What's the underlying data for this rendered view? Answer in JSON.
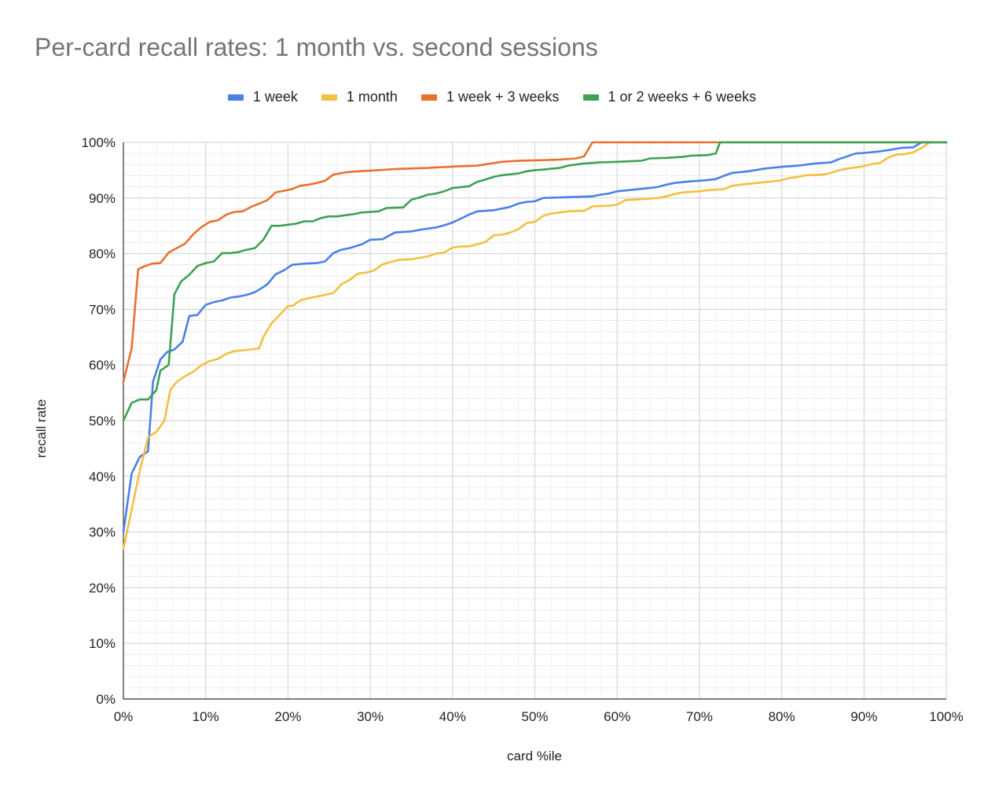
{
  "chart_data": {
    "type": "line",
    "title": "Per-card recall rates: 1 month vs. second sessions",
    "xlabel": "card %ile",
    "ylabel": "recall rate",
    "xlim": [
      0,
      100
    ],
    "ylim": [
      0,
      100
    ],
    "xticks": [
      "0%",
      "10%",
      "20%",
      "30%",
      "40%",
      "50%",
      "60%",
      "70%",
      "80%",
      "90%",
      "100%"
    ],
    "yticks": [
      "0%",
      "10%",
      "20%",
      "30%",
      "40%",
      "50%",
      "60%",
      "70%",
      "80%",
      "90%",
      "100%"
    ],
    "grid": true,
    "legend_position": "top",
    "series": [
      {
        "name": "1 week",
        "color": "#4a80e8",
        "points": [
          [
            0,
            30
          ],
          [
            1,
            40.5
          ],
          [
            2,
            43.5
          ],
          [
            3,
            44.5
          ],
          [
            3.6,
            57
          ],
          [
            4.5,
            61
          ],
          [
            5.3,
            62.3
          ],
          [
            6.2,
            62.8
          ],
          [
            7.2,
            64.2
          ],
          [
            8,
            68.8
          ],
          [
            9,
            69
          ],
          [
            10,
            70.8
          ],
          [
            11,
            71.3
          ],
          [
            12,
            71.6
          ],
          [
            13,
            72.1
          ],
          [
            14,
            72.3
          ],
          [
            15,
            72.6
          ],
          [
            16,
            73.1
          ],
          [
            17,
            74
          ],
          [
            17.5,
            74.5
          ],
          [
            18.5,
            76.3
          ],
          [
            19.5,
            77
          ],
          [
            20.5,
            78
          ],
          [
            22,
            78.2
          ],
          [
            23.5,
            78.3
          ],
          [
            24.5,
            78.6
          ],
          [
            25.5,
            80.1
          ],
          [
            26.5,
            80.7
          ],
          [
            27.5,
            81
          ],
          [
            29,
            81.7
          ],
          [
            30,
            82.5
          ],
          [
            31.5,
            82.6
          ],
          [
            33,
            83.8
          ],
          [
            35,
            84
          ],
          [
            36.5,
            84.4
          ],
          [
            38,
            84.7
          ],
          [
            39,
            85.1
          ],
          [
            40,
            85.6
          ],
          [
            41,
            86.3
          ],
          [
            42,
            87
          ],
          [
            43,
            87.6
          ],
          [
            45,
            87.8
          ],
          [
            47,
            88.4
          ],
          [
            48,
            89
          ],
          [
            49,
            89.3
          ],
          [
            50,
            89.4
          ],
          [
            51,
            90
          ],
          [
            55,
            90.2
          ],
          [
            57,
            90.3
          ],
          [
            58,
            90.6
          ],
          [
            59,
            90.8
          ],
          [
            60,
            91.2
          ],
          [
            62,
            91.5
          ],
          [
            64,
            91.8
          ],
          [
            65,
            92
          ],
          [
            66,
            92.4
          ],
          [
            67,
            92.7
          ],
          [
            69,
            93
          ],
          [
            71,
            93.2
          ],
          [
            72,
            93.4
          ],
          [
            73,
            94
          ],
          [
            74,
            94.5
          ],
          [
            76,
            94.8
          ],
          [
            78,
            95.3
          ],
          [
            80,
            95.6
          ],
          [
            82,
            95.8
          ],
          [
            84,
            96.2
          ],
          [
            86,
            96.4
          ],
          [
            87,
            97
          ],
          [
            88,
            97.5
          ],
          [
            89,
            98
          ],
          [
            90,
            98.1
          ],
          [
            91.5,
            98.3
          ],
          [
            93,
            98.6
          ],
          [
            94.5,
            99
          ],
          [
            96,
            99.1
          ],
          [
            97,
            100
          ],
          [
            100,
            100
          ]
        ]
      },
      {
        "name": "1 month",
        "color": "#f4bf42",
        "points": [
          [
            0,
            27
          ],
          [
            1,
            34
          ],
          [
            2,
            41
          ],
          [
            3,
            47
          ],
          [
            4,
            48
          ],
          [
            5,
            50
          ],
          [
            5.7,
            55.5
          ],
          [
            6.5,
            57
          ],
          [
            7.5,
            58
          ],
          [
            8.5,
            58.8
          ],
          [
            9.5,
            60
          ],
          [
            10.5,
            60.7
          ],
          [
            11.5,
            61.1
          ],
          [
            12.5,
            62
          ],
          [
            13.5,
            62.5
          ],
          [
            15,
            62.7
          ],
          [
            16.5,
            63
          ],
          [
            17,
            65
          ],
          [
            18,
            67.5
          ],
          [
            19,
            69
          ],
          [
            20,
            70.6
          ],
          [
            20.5,
            70.6
          ],
          [
            21.5,
            71.6
          ],
          [
            22.5,
            72
          ],
          [
            23.5,
            72.3
          ],
          [
            24.5,
            72.6
          ],
          [
            25.5,
            72.9
          ],
          [
            26.5,
            74.5
          ],
          [
            27.5,
            75.3
          ],
          [
            28.5,
            76.4
          ],
          [
            29.5,
            76.6
          ],
          [
            30.5,
            77
          ],
          [
            31.5,
            78.1
          ],
          [
            32.5,
            78.5
          ],
          [
            33.5,
            78.9
          ],
          [
            35,
            79
          ],
          [
            37,
            79.5
          ],
          [
            38,
            80
          ],
          [
            39,
            80.2
          ],
          [
            40,
            81.1
          ],
          [
            41,
            81.3
          ],
          [
            42,
            81.3
          ],
          [
            43,
            81.7
          ],
          [
            44,
            82.1
          ],
          [
            45,
            83.3
          ],
          [
            46,
            83.4
          ],
          [
            47,
            83.8
          ],
          [
            48,
            84.4
          ],
          [
            49,
            85.5
          ],
          [
            50,
            85.7
          ],
          [
            51,
            86.8
          ],
          [
            52,
            87.2
          ],
          [
            53,
            87.4
          ],
          [
            54,
            87.6
          ],
          [
            56,
            87.7
          ],
          [
            57,
            88.5
          ],
          [
            59,
            88.6
          ],
          [
            60,
            88.8
          ],
          [
            61,
            89.6
          ],
          [
            63,
            89.8
          ],
          [
            65,
            90
          ],
          [
            66,
            90.3
          ],
          [
            67,
            90.7
          ],
          [
            68,
            91
          ],
          [
            70,
            91.2
          ],
          [
            71,
            91.4
          ],
          [
            73,
            91.6
          ],
          [
            74,
            92.2
          ],
          [
            75,
            92.4
          ],
          [
            77,
            92.7
          ],
          [
            79,
            93
          ],
          [
            80,
            93.2
          ],
          [
            81,
            93.6
          ],
          [
            82,
            93.8
          ],
          [
            83,
            94.1
          ],
          [
            85,
            94.2
          ],
          [
            86,
            94.5
          ],
          [
            87,
            95
          ],
          [
            88,
            95.3
          ],
          [
            89,
            95.5
          ],
          [
            90,
            95.7
          ],
          [
            91,
            96.1
          ],
          [
            92,
            96.3
          ],
          [
            93,
            97.3
          ],
          [
            94,
            97.8
          ],
          [
            95,
            97.9
          ],
          [
            96,
            98.2
          ],
          [
            97,
            99
          ],
          [
            98,
            100
          ],
          [
            100,
            100
          ]
        ]
      },
      {
        "name": "1 week + 3 weeks",
        "color": "#e8712f",
        "points": [
          [
            0,
            57
          ],
          [
            1,
            63
          ],
          [
            1.8,
            77.2
          ],
          [
            2.5,
            77.7
          ],
          [
            3.5,
            78.2
          ],
          [
            4.5,
            78.3
          ],
          [
            5.5,
            80.2
          ],
          [
            6.5,
            81
          ],
          [
            7.5,
            81.8
          ],
          [
            8.5,
            83.5
          ],
          [
            9.5,
            84.8
          ],
          [
            10.5,
            85.7
          ],
          [
            11.5,
            86
          ],
          [
            12.5,
            87
          ],
          [
            13.5,
            87.5
          ],
          [
            14.5,
            87.6
          ],
          [
            15.5,
            88.4
          ],
          [
            16.5,
            89
          ],
          [
            17.5,
            89.6
          ],
          [
            18.5,
            91
          ],
          [
            19.5,
            91.3
          ],
          [
            20.5,
            91.6
          ],
          [
            21.5,
            92.2
          ],
          [
            22.5,
            92.4
          ],
          [
            23.5,
            92.7
          ],
          [
            24.5,
            93.1
          ],
          [
            25.5,
            94.2
          ],
          [
            27,
            94.6
          ],
          [
            28.5,
            94.8
          ],
          [
            31,
            95
          ],
          [
            33,
            95.2
          ],
          [
            37,
            95.4
          ],
          [
            38,
            95.5
          ],
          [
            41,
            95.7
          ],
          [
            43,
            95.8
          ],
          [
            46,
            96.5
          ],
          [
            48,
            96.7
          ],
          [
            51,
            96.8
          ],
          [
            53,
            96.9
          ],
          [
            55,
            97.1
          ],
          [
            56,
            97.5
          ],
          [
            57,
            100
          ],
          [
            100,
            100
          ]
        ]
      },
      {
        "name": "1 or 2 weeks + 6 weeks",
        "color": "#3ea153",
        "points": [
          [
            0,
            50
          ],
          [
            1,
            53.2
          ],
          [
            2,
            53.8
          ],
          [
            3,
            53.8
          ],
          [
            4,
            55.5
          ],
          [
            4.5,
            59
          ],
          [
            5.5,
            60
          ],
          [
            6.2,
            72.7
          ],
          [
            7,
            75
          ],
          [
            8,
            76.2
          ],
          [
            9,
            77.8
          ],
          [
            10,
            78.3
          ],
          [
            11,
            78.6
          ],
          [
            12,
            80.1
          ],
          [
            13,
            80.1
          ],
          [
            14,
            80.3
          ],
          [
            15,
            80.7
          ],
          [
            16,
            81
          ],
          [
            17,
            82.5
          ],
          [
            18,
            85
          ],
          [
            19,
            85
          ],
          [
            20,
            85.2
          ],
          [
            21,
            85.4
          ],
          [
            22,
            85.8
          ],
          [
            23,
            85.8
          ],
          [
            24,
            86.4
          ],
          [
            25,
            86.7
          ],
          [
            26,
            86.7
          ],
          [
            27,
            86.9
          ],
          [
            28,
            87.1
          ],
          [
            29,
            87.4
          ],
          [
            30,
            87.5
          ],
          [
            31,
            87.6
          ],
          [
            32,
            88.2
          ],
          [
            34,
            88.3
          ],
          [
            35,
            89.7
          ],
          [
            36,
            90.1
          ],
          [
            37,
            90.6
          ],
          [
            38,
            90.8
          ],
          [
            39,
            91.2
          ],
          [
            40,
            91.8
          ],
          [
            42,
            92.1
          ],
          [
            43,
            92.9
          ],
          [
            44,
            93.3
          ],
          [
            45,
            93.8
          ],
          [
            46,
            94.1
          ],
          [
            48,
            94.4
          ],
          [
            49,
            94.8
          ],
          [
            50,
            95
          ],
          [
            51,
            95.1
          ],
          [
            53,
            95.4
          ],
          [
            54,
            95.8
          ],
          [
            55,
            96
          ],
          [
            56,
            96.2
          ],
          [
            58,
            96.4
          ],
          [
            60,
            96.5
          ],
          [
            63,
            96.7
          ],
          [
            64,
            97.1
          ],
          [
            66,
            97.2
          ],
          [
            68,
            97.4
          ],
          [
            69,
            97.6
          ],
          [
            71,
            97.7
          ],
          [
            72,
            98
          ],
          [
            72.5,
            100
          ],
          [
            100,
            100
          ]
        ]
      }
    ]
  }
}
